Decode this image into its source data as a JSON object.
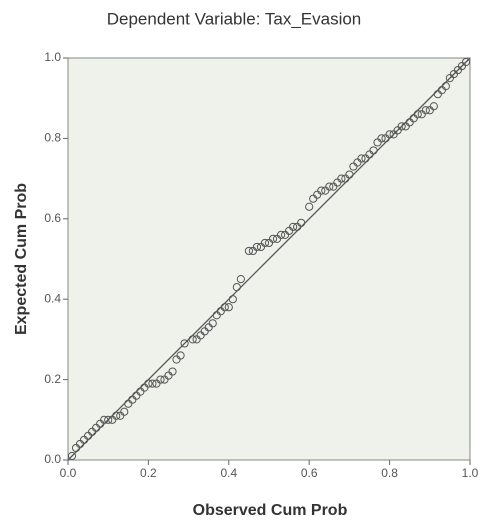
{
  "chart_data": {
    "type": "scatter",
    "title": "Dependent Variable: Tax_Evasion",
    "x_label": "Observed Cum Prob",
    "y_label": "Expected Cum Prob",
    "xlim": [
      0,
      1
    ],
    "ylim": [
      0,
      1
    ],
    "xticks": [
      {
        "value": 0,
        "label": "0.0"
      },
      {
        "value": 0.2,
        "label": "0.2"
      },
      {
        "value": 0.4,
        "label": "0.4"
      },
      {
        "value": 0.6,
        "label": "0.6"
      },
      {
        "value": 0.8,
        "label": "0.8"
      },
      {
        "value": 1,
        "label": "1.0"
      }
    ],
    "yticks": [
      {
        "value": 0,
        "label": "0.0"
      },
      {
        "value": 0.2,
        "label": "0.2"
      },
      {
        "value": 0.4,
        "label": "0.4"
      },
      {
        "value": 0.6,
        "label": "0.6"
      },
      {
        "value": 0.8,
        "label": "0.8"
      },
      {
        "value": 1,
        "label": "1.0"
      }
    ],
    "color": "#555555",
    "x": [
      0.01,
      0.02,
      0.03,
      0.04,
      0.05,
      0.06,
      0.07,
      0.08,
      0.09,
      0.1,
      0.11,
      0.12,
      0.13,
      0.14,
      0.15,
      0.16,
      0.17,
      0.18,
      0.19,
      0.2,
      0.21,
      0.22,
      0.23,
      0.24,
      0.25,
      0.26,
      0.27,
      0.28,
      0.29,
      0.31,
      0.32,
      0.33,
      0.34,
      0.35,
      0.36,
      0.37,
      0.38,
      0.39,
      0.4,
      0.41,
      0.42,
      0.43,
      0.45,
      0.46,
      0.47,
      0.48,
      0.49,
      0.5,
      0.51,
      0.52,
      0.53,
      0.54,
      0.55,
      0.56,
      0.57,
      0.58,
      0.6,
      0.61,
      0.62,
      0.63,
      0.64,
      0.65,
      0.66,
      0.67,
      0.68,
      0.69,
      0.7,
      0.71,
      0.72,
      0.73,
      0.74,
      0.75,
      0.76,
      0.77,
      0.78,
      0.79,
      0.8,
      0.81,
      0.82,
      0.83,
      0.84,
      0.85,
      0.86,
      0.87,
      0.88,
      0.89,
      0.9,
      0.91,
      0.92,
      0.93,
      0.94,
      0.95,
      0.96,
      0.97,
      0.98,
      0.99
    ],
    "y": [
      0.01,
      0.03,
      0.04,
      0.05,
      0.06,
      0.07,
      0.08,
      0.09,
      0.1,
      0.1,
      0.1,
      0.11,
      0.11,
      0.12,
      0.14,
      0.15,
      0.16,
      0.17,
      0.18,
      0.19,
      0.19,
      0.19,
      0.2,
      0.2,
      0.21,
      0.22,
      0.25,
      0.26,
      0.29,
      0.3,
      0.3,
      0.31,
      0.32,
      0.33,
      0.34,
      0.36,
      0.37,
      0.38,
      0.38,
      0.4,
      0.43,
      0.45,
      0.52,
      0.52,
      0.53,
      0.53,
      0.54,
      0.54,
      0.55,
      0.55,
      0.56,
      0.56,
      0.57,
      0.58,
      0.58,
      0.59,
      0.63,
      0.65,
      0.66,
      0.67,
      0.67,
      0.68,
      0.68,
      0.69,
      0.7,
      0.7,
      0.71,
      0.73,
      0.74,
      0.75,
      0.75,
      0.76,
      0.77,
      0.79,
      0.8,
      0.8,
      0.81,
      0.81,
      0.82,
      0.83,
      0.83,
      0.84,
      0.85,
      0.86,
      0.86,
      0.87,
      0.87,
      0.88,
      0.91,
      0.92,
      0.93,
      0.95,
      0.96,
      0.97,
      0.98,
      0.99
    ]
  }
}
